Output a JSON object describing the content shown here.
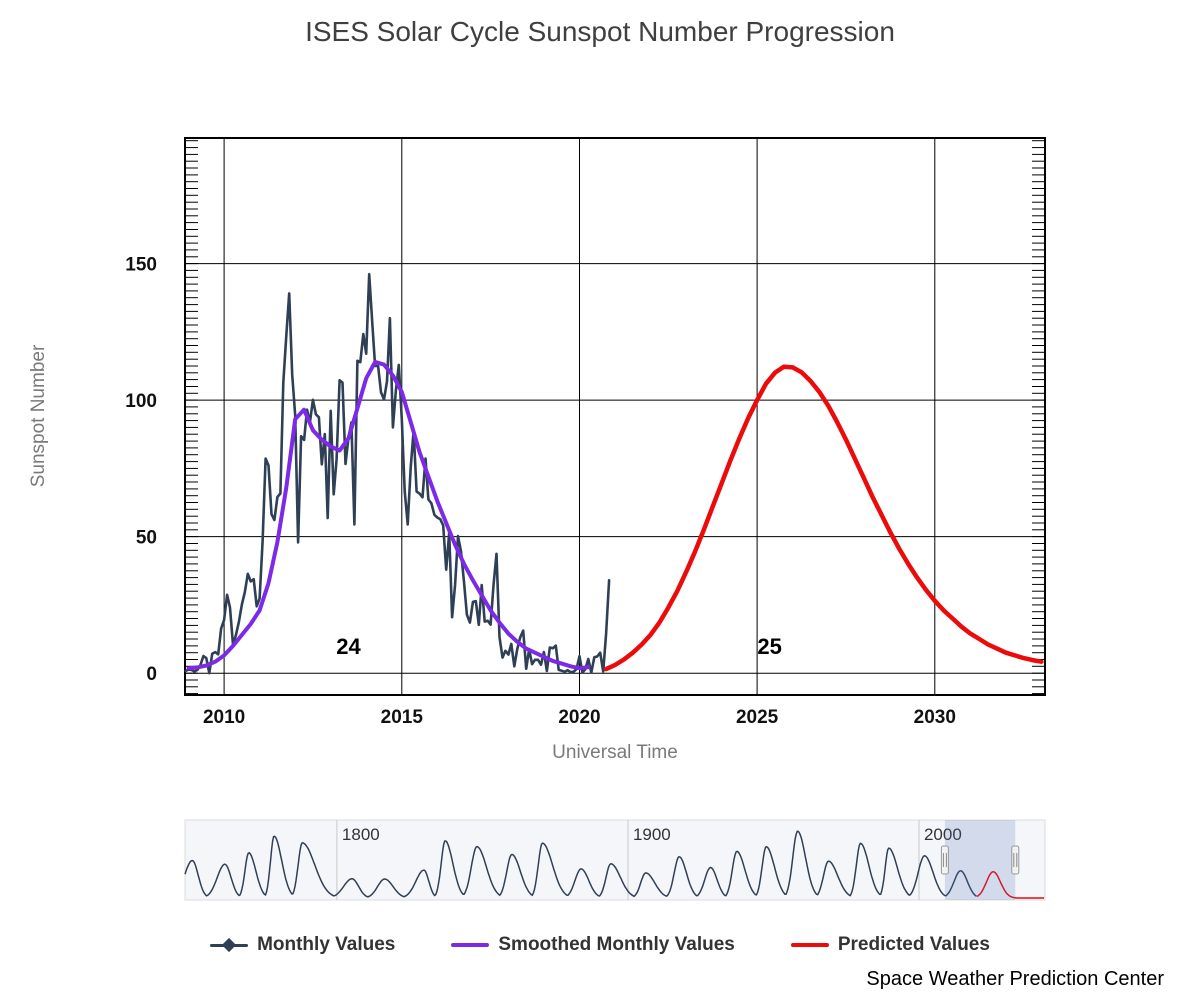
{
  "title": "ISES Solar Cycle Sunspot Number Progression",
  "axes": {
    "x": {
      "label": "Universal Time"
    },
    "y": {
      "label": "Sunspot Number"
    }
  },
  "legend": {
    "items": [
      {
        "label": "Monthly Values",
        "color": "#2f4056",
        "marker": "diamond-line"
      },
      {
        "label": "Smoothed Monthly Values",
        "color": "#7d2ae8",
        "marker": "line"
      },
      {
        "label": "Predicted Values",
        "color": "#ec0b0b",
        "marker": "line"
      }
    ]
  },
  "credit": "Space Weather Prediction Center",
  "chart_data": {
    "type": "line",
    "title": "ISES Solar Cycle Sunspot Number Progression",
    "xlabel": "Universal Time",
    "ylabel": "Sunspot Number",
    "xlim": [
      2008.9,
      2033.1
    ],
    "ylim": [
      -8,
      196
    ],
    "x_ticks": [
      2010,
      2015,
      2020,
      2025,
      2030
    ],
    "y_ticks": [
      0,
      50,
      100,
      150
    ],
    "minor_tick_interval": 2.5,
    "grid": true,
    "legend_position": "bottom",
    "annotations": [
      {
        "text": "24",
        "x": 2013.5,
        "y": 7
      },
      {
        "text": "25",
        "x": 2025.35,
        "y": 7
      }
    ],
    "series": [
      {
        "name": "Monthly Values",
        "color": "#2f4056",
        "x_start": 2008.9167,
        "x_step_years": 0.083333,
        "values": [
          0.8,
          1.3,
          1.2,
          0.6,
          1.2,
          2.9,
          6.3,
          5.5,
          0.0,
          7.1,
          7.7,
          6.9,
          16.3,
          19.5,
          28.7,
          24.0,
          10.4,
          13.9,
          18.8,
          25.2,
          29.6,
          36.4,
          33.6,
          34.4,
          24.5,
          27.3,
          48.3,
          78.6,
          76.1,
          58.2,
          56.1,
          64.5,
          65.8,
          106.4,
          123.6,
          139.1,
          109.3,
          94.4,
          47.9,
          86.8,
          85.4,
          96.5,
          92.0,
          100.1,
          94.8,
          93.7,
          76.5,
          87.6,
          56.8,
          96.1,
          65.5,
          78.4,
          107.3,
          106.4,
          76.6,
          86.2,
          91.8,
          54.5,
          114.4,
          113.9,
          124.2,
          117.0,
          146.1,
          128.7,
          112.5,
          112.5,
          102.9,
          100.2,
          106.9,
          130.0,
          90.0,
          103.6,
          112.9,
          93.0,
          66.7,
          54.5,
          75.3,
          88.8,
          66.5,
          65.8,
          64.4,
          78.6,
          63.6,
          62.2,
          58.0,
          57.0,
          56.4,
          54.1,
          37.9,
          51.5,
          20.5,
          32.4,
          50.2,
          44.6,
          33.4,
          21.4,
          18.5,
          26.1,
          26.4,
          17.7,
          32.3,
          18.9,
          19.2,
          17.8,
          32.6,
          43.7,
          13.2,
          5.7,
          8.2,
          6.8,
          10.7,
          2.5,
          8.9,
          13.1,
          15.6,
          1.6,
          8.7,
          3.3,
          4.9,
          4.9,
          3.1,
          7.7,
          0.8,
          9.4,
          9.1,
          10.1,
          1.2,
          0.9,
          0.5,
          1.1,
          0.4,
          0.5,
          1.5,
          6.2,
          0.2,
          1.5,
          5.2,
          0.2,
          5.8,
          6.1,
          7.5,
          0.6,
          14.4,
          34.0
        ]
      },
      {
        "name": "Smoothed Monthly Values",
        "color": "#7d2ae8",
        "x_start": 2009.0,
        "x_step_years": 0.25,
        "values": [
          1.8,
          2.1,
          2.8,
          4.2,
          6.5,
          10.0,
          14.0,
          18.0,
          23.0,
          33.0,
          48.0,
          68.0,
          93.0,
          96.5,
          89.0,
          85.5,
          83.0,
          81.5,
          86.0,
          97.0,
          108.0,
          114.0,
          113.0,
          109.0,
          103.0,
          92.0,
          81.0,
          72.0,
          63.0,
          55.0,
          47.0,
          40.0,
          34.0,
          28.5,
          23.0,
          18.5,
          14.5,
          11.5,
          9.0,
          7.5,
          6.0,
          4.5,
          3.5,
          2.5,
          1.8,
          2.2
        ]
      },
      {
        "name": "Predicted Values",
        "color": "#ec0b0b",
        "x_start": 2020.75,
        "x_step_years": 0.25,
        "values": [
          1.5,
          3.0,
          5.0,
          7.5,
          10.5,
          14.0,
          18.5,
          24.0,
          30.0,
          37.0,
          44.5,
          52.5,
          61.0,
          69.5,
          78.0,
          86.0,
          93.5,
          100.0,
          106.0,
          110.0,
          112.2,
          112.0,
          110.2,
          107.0,
          103.0,
          98.0,
          92.0,
          85.5,
          78.5,
          71.5,
          64.5,
          58.0,
          51.5,
          45.5,
          40.0,
          35.0,
          30.5,
          26.5,
          23.0,
          20.0,
          17.0,
          14.5,
          12.5,
          10.5,
          9.0,
          7.5,
          6.5,
          5.5,
          4.8,
          4.2
        ]
      }
    ],
    "navigator": {
      "xlim": [
        1747.8,
        2043.3
      ],
      "x_ticks": [
        1800,
        1900,
        2000
      ],
      "selected_range": [
        2008.9,
        2033.1
      ],
      "historical_color": "#2f4056",
      "predicted_color": "#ec0b0b",
      "cycles": [
        [
          1744.0,
          1750.3,
          1755.2,
          160
        ],
        [
          1755.2,
          1761.5,
          1766.6,
          144
        ],
        [
          1766.6,
          1769.7,
          1775.5,
          193
        ],
        [
          1775.5,
          1778.4,
          1784.7,
          264
        ],
        [
          1784.7,
          1788.1,
          1798.3,
          235
        ],
        [
          1798.3,
          1805.2,
          1810.6,
          82
        ],
        [
          1810.6,
          1816.4,
          1823.3,
          81
        ],
        [
          1823.3,
          1829.9,
          1833.9,
          119
        ],
        [
          1833.9,
          1837.2,
          1843.5,
          244
        ],
        [
          1843.5,
          1848.1,
          1855.9,
          219
        ],
        [
          1855.9,
          1860.1,
          1867.2,
          186
        ],
        [
          1867.2,
          1870.6,
          1878.9,
          234
        ],
        [
          1878.9,
          1883.9,
          1890.2,
          124
        ],
        [
          1890.2,
          1894.1,
          1902.0,
          146
        ],
        [
          1902.0,
          1906.1,
          1913.5,
          107
        ],
        [
          1913.5,
          1917.6,
          1923.6,
          176
        ],
        [
          1923.6,
          1928.4,
          1933.7,
          130
        ],
        [
          1933.7,
          1937.4,
          1944.1,
          199
        ],
        [
          1944.1,
          1947.5,
          1954.3,
          219
        ],
        [
          1954.3,
          1958.3,
          1964.8,
          285
        ],
        [
          1964.8,
          1968.9,
          1976.5,
          157
        ],
        [
          1976.5,
          1979.9,
          1986.7,
          233
        ],
        [
          1986.7,
          1989.6,
          1996.7,
          213
        ],
        [
          1996.7,
          2001.9,
          2008.9,
          180
        ],
        [
          2008.9,
          2014.3,
          2019.9,
          116
        ]
      ],
      "predicted_cycle": [
        2019.9,
        2025.5,
        2031.5,
        112
      ]
    }
  }
}
